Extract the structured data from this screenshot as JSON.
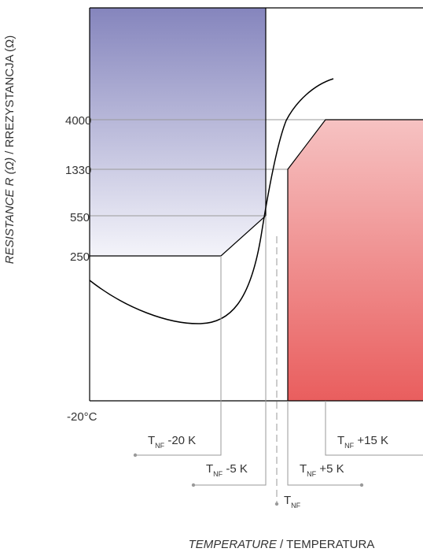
{
  "y_axis": {
    "label_italic": "RESISTANCE R (Ω)",
    "label_rest": " / RREZYSTANCJA (Ω)",
    "ticks": [
      "4000",
      "1330",
      "550",
      "250"
    ]
  },
  "x_axis": {
    "start_label": "-20°C",
    "label_italic": "TEMPERATURE",
    "label_rest": " / TEMPERATURA"
  },
  "markers": {
    "t": "T",
    "sub": "NF",
    "m20": " -20 K",
    "m5": " -5 K",
    "tnf": "",
    "p5": " +5 K",
    "p15": " +15 K"
  },
  "colors": {
    "cold_top": "#8585bd",
    "cold_bottom": "#f4f4fa",
    "hot_top": "#f6c2c2",
    "hot_bottom": "#e95e5e",
    "guide": "#9a9a9a",
    "frame": "#000000"
  }
}
